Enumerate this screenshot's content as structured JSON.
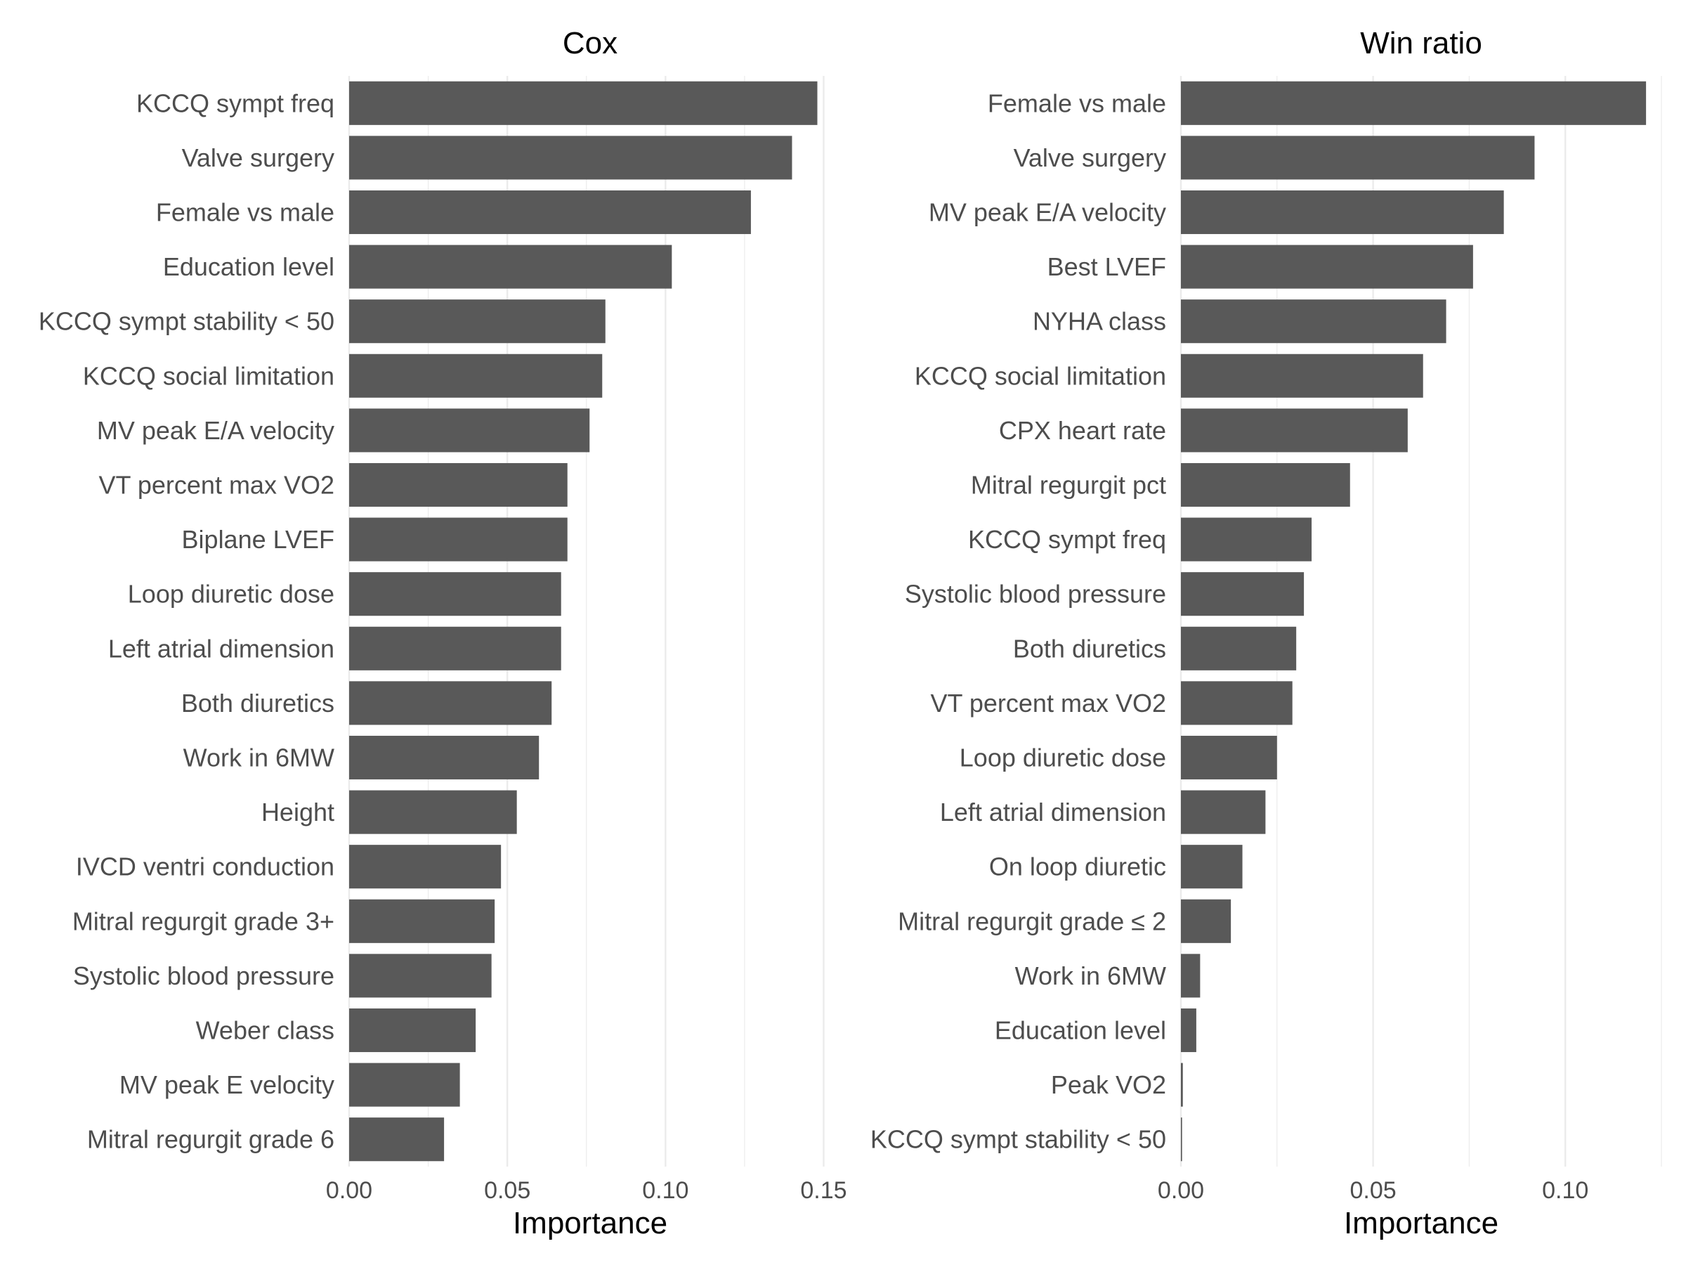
{
  "colors": {
    "bar": "#595959",
    "grid": "#ebebeb",
    "label": "#4d4d4d",
    "title": "#000000",
    "background": "#ffffff"
  },
  "chart_data": [
    {
      "type": "bar",
      "orientation": "horizontal",
      "title": "Cox",
      "xlabel": "Importance",
      "ylabel": "",
      "xlim": [
        0,
        0.155
      ],
      "xticks": [
        0.0,
        0.05,
        0.1,
        0.15
      ],
      "xtick_labels": [
        "0.00",
        "0.05",
        "0.10",
        "0.15"
      ],
      "grid": true,
      "categories": [
        "KCCQ sympt freq",
        "Valve surgery",
        "Female vs male",
        "Education level",
        "KCCQ sympt stability < 50",
        "KCCQ social limitation",
        "MV peak E/A velocity",
        "VT percent max VO2",
        "Biplane LVEF",
        "Loop diuretic dose",
        "Left atrial dimension",
        "Both diuretics",
        "Work in 6MW",
        "Height",
        "IVCD ventri conduction",
        "Mitral regurgit grade 3+",
        "Systolic blood pressure",
        "Weber class",
        "MV peak E velocity",
        "Mitral regurgit grade 6"
      ],
      "values": [
        0.148,
        0.14,
        0.127,
        0.102,
        0.081,
        0.08,
        0.076,
        0.069,
        0.069,
        0.067,
        0.067,
        0.064,
        0.06,
        0.053,
        0.048,
        0.046,
        0.045,
        0.04,
        0.035,
        0.03
      ]
    },
    {
      "type": "bar",
      "orientation": "horizontal",
      "title": "Win ratio",
      "xlabel": "Importance",
      "ylabel": "",
      "xlim": [
        0,
        0.125
      ],
      "xticks": [
        0.0,
        0.05,
        0.1
      ],
      "xtick_labels": [
        "0.00",
        "0.05",
        "0.10"
      ],
      "grid": true,
      "categories": [
        "Female vs male",
        "Valve surgery",
        "MV peak E/A velocity",
        "Best LVEF",
        "NYHA class",
        "KCCQ social limitation",
        "CPX heart rate",
        "Mitral regurgit pct",
        "KCCQ sympt freq",
        "Systolic blood pressure",
        "Both diuretics",
        "VT percent max VO2",
        "Loop diuretic dose",
        "Left atrial dimension",
        "On loop diuretic",
        "Mitral regurgit grade ≤ 2",
        "Work in 6MW",
        "Education level",
        "Peak VO2",
        "KCCQ sympt stability < 50"
      ],
      "values": [
        0.121,
        0.092,
        0.084,
        0.076,
        0.069,
        0.063,
        0.059,
        0.044,
        0.034,
        0.032,
        0.03,
        0.029,
        0.025,
        0.022,
        0.016,
        0.013,
        0.005,
        0.004,
        0.0005,
        0.0003
      ]
    }
  ]
}
